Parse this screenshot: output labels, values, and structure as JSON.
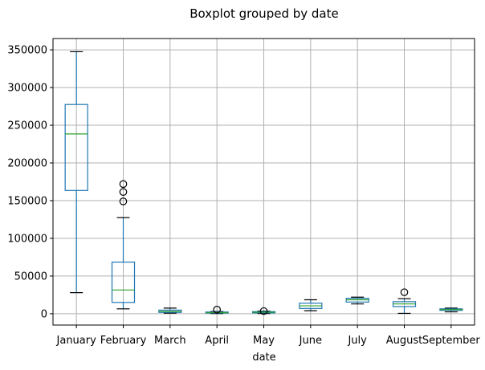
{
  "chart_data": {
    "type": "boxplot",
    "title": "Boxplot grouped by date",
    "xlabel": "date",
    "ylabel": "",
    "ylim": [
      -15000,
      365000
    ],
    "yticks": [
      0,
      50000,
      100000,
      150000,
      200000,
      250000,
      300000,
      350000
    ],
    "ytick_labels": [
      "0",
      "50000",
      "100000",
      "150000",
      "200000",
      "250000",
      "300000",
      "350000"
    ],
    "grid": true,
    "categories": [
      "January",
      "February",
      "March",
      "April",
      "May",
      "June",
      "July",
      "August",
      "September"
    ],
    "boxes": [
      {
        "category": "January",
        "whisker_low": 28000,
        "q1": 163500,
        "median": 238500,
        "q3": 277500,
        "whisker_high": 347500,
        "outliers": []
      },
      {
        "category": "February",
        "whisker_low": 6500,
        "q1": 15000,
        "median": 31500,
        "q3": 68500,
        "whisker_high": 127500,
        "outliers": [
          149000,
          161500,
          172000
        ]
      },
      {
        "category": "March",
        "whisker_low": 800,
        "q1": 1800,
        "median": 3000,
        "q3": 4800,
        "whisker_high": 7500,
        "outliers": []
      },
      {
        "category": "April",
        "whisker_low": 300,
        "q1": 1000,
        "median": 1500,
        "q3": 2300,
        "whisker_high": 3000,
        "outliers": [
          5500
        ]
      },
      {
        "category": "May",
        "whisker_low": 300,
        "q1": 1200,
        "median": 2000,
        "q3": 2800,
        "whisker_high": 3500,
        "outliers": [
          3500
        ]
      },
      {
        "category": "June",
        "whisker_low": 4000,
        "q1": 7000,
        "median": 10500,
        "q3": 14000,
        "whisker_high": 18500,
        "outliers": []
      },
      {
        "category": "July",
        "whisker_low": 13000,
        "q1": 15500,
        "median": 18500,
        "q3": 20500,
        "whisker_high": 22000,
        "outliers": []
      },
      {
        "category": "August",
        "whisker_low": 500,
        "q1": 9500,
        "median": 13000,
        "q3": 16000,
        "whisker_high": 20000,
        "outliers": [
          28500
        ]
      },
      {
        "category": "September",
        "whisker_low": 2500,
        "q1": 4500,
        "median": 5500,
        "q3": 6500,
        "whisker_high": 7500,
        "outliers": []
      }
    ],
    "colors": {
      "box": "#1f77b4",
      "median": "#2ca02c",
      "whisker": "#000000",
      "grid": "#b0b0b0",
      "outlier": "#000000"
    }
  }
}
